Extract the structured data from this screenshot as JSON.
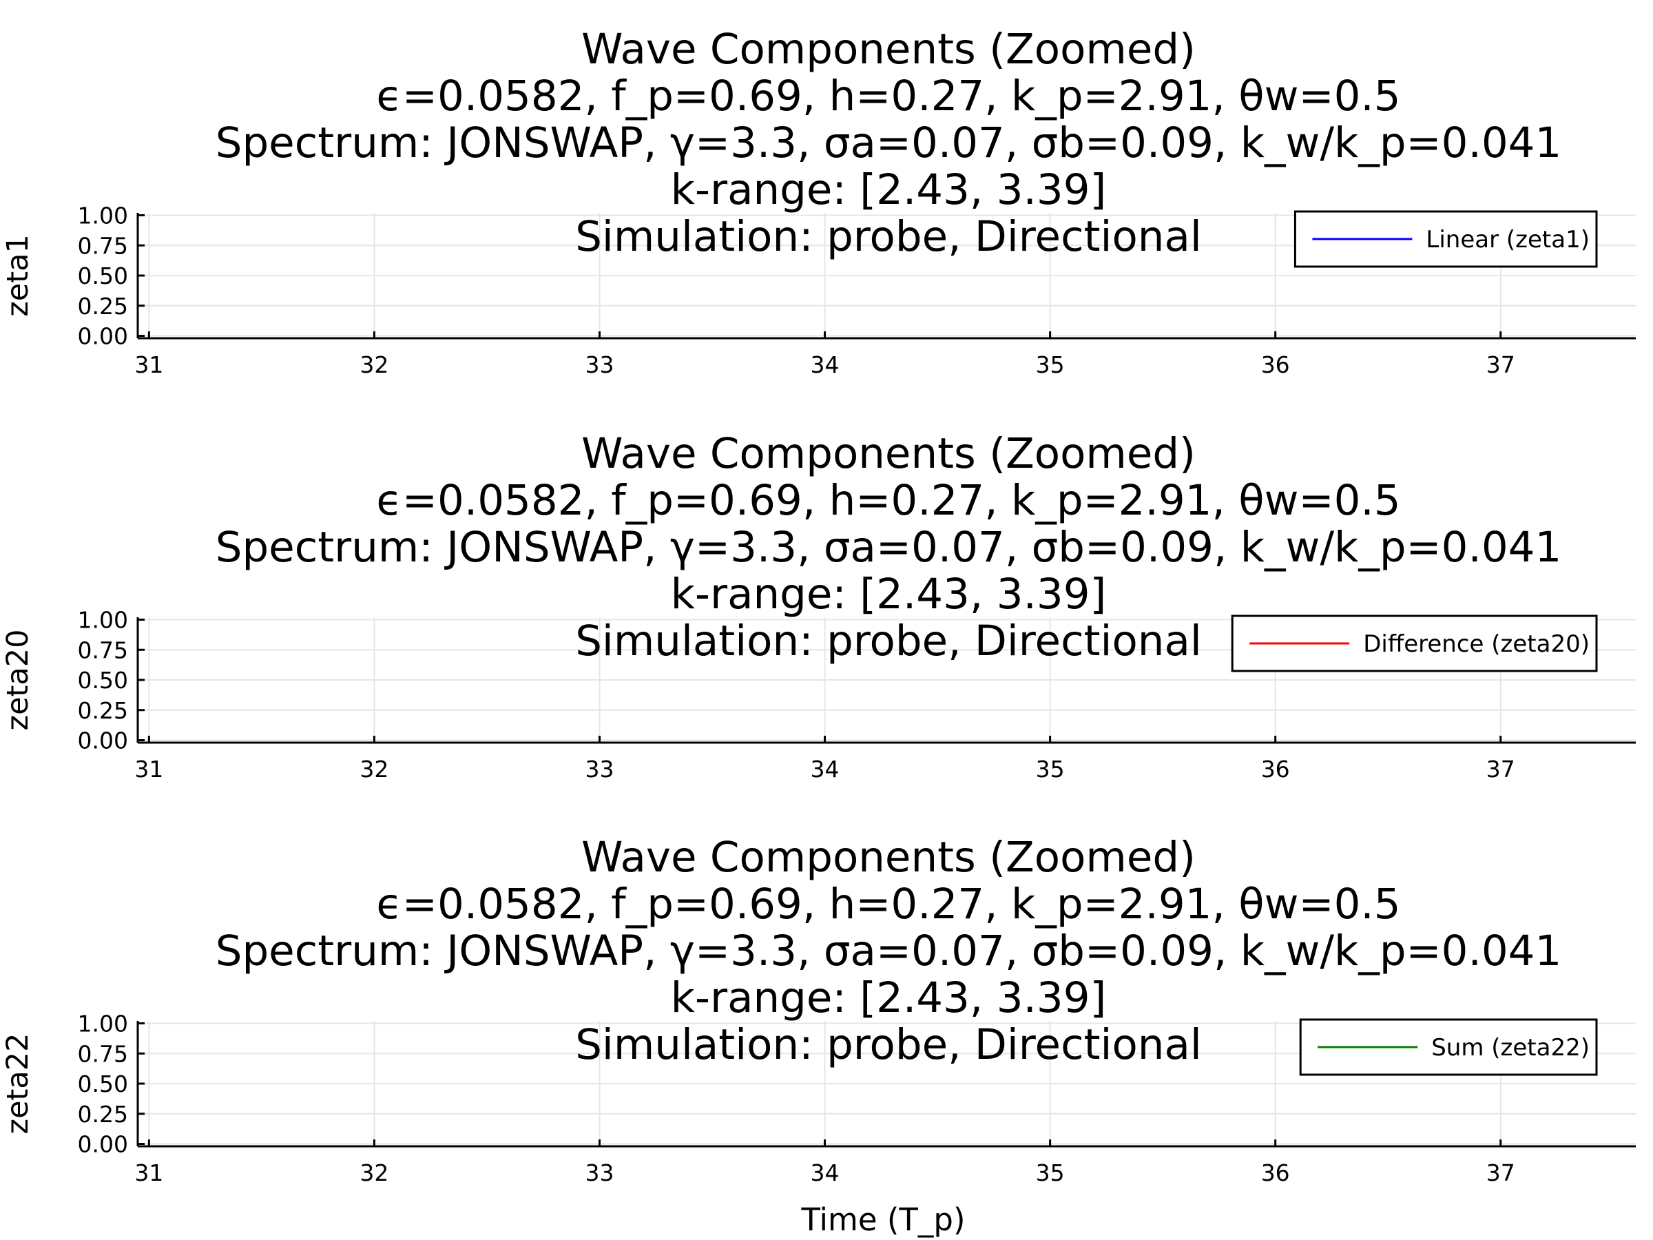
{
  "chart_data": [
    {
      "type": "line",
      "title": [
        "Wave Components (Zoomed)",
        "ϵ=0.0582, f_p=0.69, h=0.27, k_p=2.91, θw=0.5",
        "Spectrum: JONSWAP, γ=3.3, σa=0.07, σb=0.09, k_w/k_p=0.041",
        "k-range: [2.43, 3.39]",
        "Simulation: probe, Directional"
      ],
      "xlabel": "",
      "ylabel": "zeta1",
      "x_ticks": [
        "31",
        "32",
        "33",
        "34",
        "35",
        "36",
        "37"
      ],
      "y_ticks": [
        "0.00",
        "0.25",
        "0.50",
        "0.75",
        "1.00"
      ],
      "xlim": [
        30.95,
        37.6
      ],
      "ylim": [
        -0.02,
        1.02
      ],
      "grid": true,
      "legend_position": "top-right",
      "series": [
        {
          "name": "Linear (zeta1)",
          "color": "#0000ff",
          "x": [],
          "y": []
        }
      ]
    },
    {
      "type": "line",
      "title": [
        "Wave Components (Zoomed)",
        "ϵ=0.0582, f_p=0.69, h=0.27, k_p=2.91, θw=0.5",
        "Spectrum: JONSWAP, γ=3.3, σa=0.07, σb=0.09, k_w/k_p=0.041",
        "k-range: [2.43, 3.39]",
        "Simulation: probe, Directional"
      ],
      "xlabel": "",
      "ylabel": "zeta20",
      "x_ticks": [
        "31",
        "32",
        "33",
        "34",
        "35",
        "36",
        "37"
      ],
      "y_ticks": [
        "0.00",
        "0.25",
        "0.50",
        "0.75",
        "1.00"
      ],
      "xlim": [
        30.95,
        37.6
      ],
      "ylim": [
        -0.02,
        1.02
      ],
      "grid": true,
      "legend_position": "top-right",
      "series": [
        {
          "name": "Difference (zeta20)",
          "color": "#ff0000",
          "x": [],
          "y": []
        }
      ]
    },
    {
      "type": "line",
      "title": [
        "Wave Components (Zoomed)",
        "ϵ=0.0582, f_p=0.69, h=0.27, k_p=2.91, θw=0.5",
        "Spectrum: JONSWAP, γ=3.3, σa=0.07, σb=0.09, k_w/k_p=0.041",
        "k-range: [2.43, 3.39]",
        "Simulation: probe, Directional"
      ],
      "xlabel": "Time (T_p)",
      "ylabel": "zeta22",
      "x_ticks": [
        "31",
        "32",
        "33",
        "34",
        "35",
        "36",
        "37"
      ],
      "y_ticks": [
        "0.00",
        "0.25",
        "0.50",
        "0.75",
        "1.00"
      ],
      "xlim": [
        30.95,
        37.6
      ],
      "ylim": [
        -0.02,
        1.02
      ],
      "grid": true,
      "legend_position": "top-right",
      "series": [
        {
          "name": "Sum (zeta22)",
          "color": "#008000",
          "x": [],
          "y": []
        }
      ]
    }
  ]
}
